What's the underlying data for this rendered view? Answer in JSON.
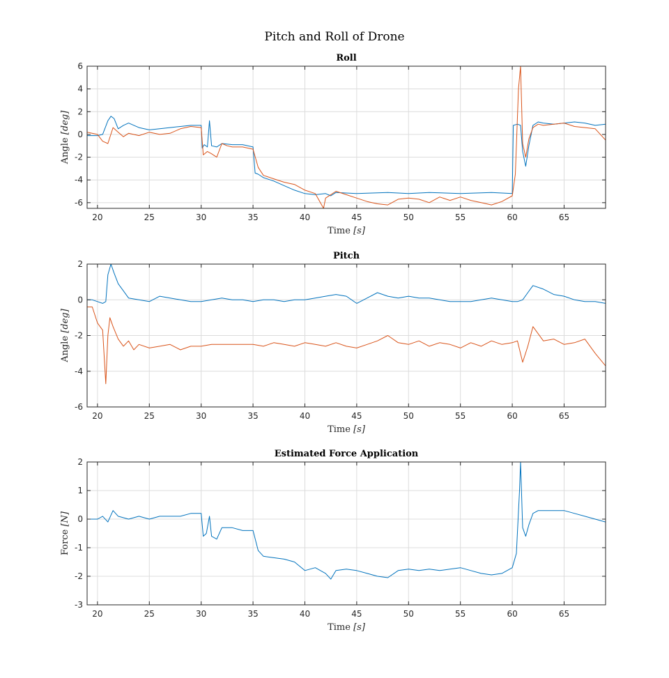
{
  "figure_title": "Pitch and Roll of Drone",
  "chart_data": [
    {
      "type": "line",
      "title": "Roll",
      "xlabel": "Time ",
      "xunit": "[s]",
      "ylabel": "Angle ",
      "yunit": "[deg]",
      "xlim": [
        19,
        69
      ],
      "ylim": [
        -6.5,
        6
      ],
      "xticks": [
        20,
        25,
        30,
        35,
        40,
        45,
        50,
        55,
        60,
        65
      ],
      "yticks": [
        -6,
        -4,
        -2,
        0,
        2,
        4,
        6
      ],
      "grid": true,
      "colors": [
        "#0072BD",
        "#D95319"
      ],
      "series": [
        {
          "x": [
            19,
            20,
            20.5,
            21,
            21.3,
            21.6,
            22,
            22.5,
            23,
            24,
            25,
            26,
            27,
            28,
            29,
            30,
            30.1,
            30.3,
            30.6,
            30.8,
            31,
            31.5,
            32,
            33,
            34,
            35,
            35.2,
            35.5,
            36,
            37,
            38,
            39,
            40,
            41,
            42,
            42.5,
            43,
            45,
            48,
            50,
            52,
            55,
            58,
            60,
            60.1,
            60.5,
            60.8,
            61,
            61.3,
            61.6,
            62,
            62.5,
            63,
            64,
            65,
            66,
            67,
            68,
            69
          ],
          "y": [
            -0.1,
            -0.1,
            0.0,
            1.2,
            1.6,
            1.4,
            0.5,
            0.8,
            1.0,
            0.6,
            0.4,
            0.5,
            0.6,
            0.7,
            0.8,
            0.8,
            -1.2,
            -0.9,
            -1.1,
            1.2,
            -1.0,
            -1.1,
            -0.8,
            -0.9,
            -0.9,
            -1.1,
            -3.4,
            -3.5,
            -3.8,
            -4.1,
            -4.5,
            -4.9,
            -5.2,
            -5.3,
            -5.2,
            -5.4,
            -5.1,
            -5.2,
            -5.1,
            -5.2,
            -5.1,
            -5.2,
            -5.1,
            -5.2,
            0.8,
            0.9,
            0.8,
            -1.5,
            -2.8,
            -1.0,
            0.8,
            1.1,
            1.0,
            0.9,
            1.0,
            1.1,
            1.0,
            0.8,
            0.9
          ]
        },
        {
          "x": [
            19,
            20,
            20.5,
            21,
            21.5,
            22,
            22.5,
            23,
            24,
            25,
            26,
            27,
            28,
            29,
            30,
            30.2,
            30.6,
            31,
            31.5,
            32,
            32.5,
            33,
            34,
            35,
            35.5,
            36,
            37,
            38,
            39,
            40,
            41,
            41.8,
            42,
            42.5,
            43,
            44,
            45,
            46,
            47,
            48,
            49,
            50,
            51,
            52,
            53,
            54,
            55,
            56,
            57,
            58,
            59,
            60,
            60.3,
            60.6,
            60.8,
            61,
            61.3,
            61.6,
            62,
            62.5,
            63,
            64,
            65,
            66,
            67,
            68,
            69
          ],
          "y": [
            0.2,
            0.0,
            -0.6,
            -0.8,
            0.6,
            0.2,
            -0.2,
            0.1,
            -0.1,
            0.2,
            0.0,
            0.1,
            0.5,
            0.7,
            0.6,
            -1.8,
            -1.5,
            -1.7,
            -2.0,
            -0.8,
            -1.0,
            -1.1,
            -1.1,
            -1.3,
            -2.9,
            -3.6,
            -3.9,
            -4.2,
            -4.4,
            -4.9,
            -5.2,
            -6.5,
            -5.6,
            -5.3,
            -5.0,
            -5.3,
            -5.6,
            -5.9,
            -6.1,
            -6.2,
            -5.7,
            -5.6,
            -5.7,
            -6.0,
            -5.5,
            -5.8,
            -5.5,
            -5.8,
            -6.0,
            -6.2,
            -5.9,
            -5.4,
            -3.5,
            4.0,
            6.0,
            -0.8,
            -2.0,
            -0.4,
            0.6,
            0.9,
            0.8,
            0.9,
            1.0,
            0.7,
            0.6,
            0.5,
            -0.5
          ]
        }
      ]
    },
    {
      "type": "line",
      "title": "Pitch",
      "xlabel": "Time ",
      "xunit": "[s]",
      "ylabel": "Angle ",
      "yunit": "[deg]",
      "xlim": [
        19,
        69
      ],
      "ylim": [
        -6,
        2
      ],
      "xticks": [
        20,
        25,
        30,
        35,
        40,
        45,
        50,
        55,
        60,
        65
      ],
      "yticks": [
        -6,
        -4,
        -2,
        0,
        2
      ],
      "grid": true,
      "colors": [
        "#0072BD",
        "#D95319"
      ],
      "series": [
        {
          "x": [
            19,
            19.5,
            20,
            20.5,
            20.8,
            21,
            21.3,
            21.6,
            22,
            22.5,
            23,
            24,
            25,
            26,
            27,
            28,
            29,
            30,
            31,
            32,
            33,
            34,
            35,
            36,
            37,
            38,
            39,
            40,
            41,
            42,
            43,
            44,
            45,
            46,
            47,
            48,
            49,
            50,
            51,
            52,
            53,
            54,
            55,
            56,
            57,
            58,
            59,
            60,
            60.5,
            61,
            61.5,
            62,
            63,
            64,
            65,
            66,
            67,
            68,
            69
          ],
          "y": [
            0.0,
            0.0,
            -0.1,
            -0.2,
            -0.1,
            1.4,
            2.0,
            1.5,
            0.9,
            0.5,
            0.1,
            0.0,
            -0.1,
            0.2,
            0.1,
            0.0,
            -0.1,
            -0.1,
            0.0,
            0.1,
            0.0,
            0.0,
            -0.1,
            0.0,
            0.0,
            -0.1,
            0.0,
            0.0,
            0.1,
            0.2,
            0.3,
            0.2,
            -0.2,
            0.1,
            0.4,
            0.2,
            0.1,
            0.2,
            0.1,
            0.1,
            0.0,
            -0.1,
            -0.1,
            -0.1,
            0.0,
            0.1,
            0.0,
            -0.1,
            -0.1,
            0.0,
            0.4,
            0.8,
            0.6,
            0.3,
            0.2,
            0.0,
            -0.1,
            -0.1,
            -0.2
          ]
        },
        {
          "x": [
            19,
            19.5,
            20,
            20.5,
            20.8,
            21,
            21.2,
            21.5,
            22,
            22.5,
            23,
            23.5,
            24,
            25,
            26,
            27,
            28,
            29,
            30,
            31,
            32,
            33,
            34,
            35,
            36,
            37,
            38,
            39,
            40,
            41,
            42,
            43,
            44,
            45,
            46,
            47,
            48,
            49,
            50,
            51,
            52,
            53,
            54,
            55,
            56,
            57,
            58,
            59,
            60,
            60.5,
            61,
            61.5,
            62,
            63,
            64,
            65,
            66,
            67,
            68,
            69
          ],
          "y": [
            -0.4,
            -0.4,
            -1.3,
            -1.7,
            -4.7,
            -2.0,
            -1.0,
            -1.5,
            -2.2,
            -2.6,
            -2.3,
            -2.8,
            -2.5,
            -2.7,
            -2.6,
            -2.5,
            -2.8,
            -2.6,
            -2.6,
            -2.5,
            -2.5,
            -2.5,
            -2.5,
            -2.5,
            -2.6,
            -2.4,
            -2.5,
            -2.6,
            -2.4,
            -2.5,
            -2.6,
            -2.4,
            -2.6,
            -2.7,
            -2.5,
            -2.3,
            -2.0,
            -2.4,
            -2.5,
            -2.3,
            -2.6,
            -2.4,
            -2.5,
            -2.7,
            -2.4,
            -2.6,
            -2.3,
            -2.5,
            -2.4,
            -2.3,
            -3.5,
            -2.6,
            -1.5,
            -2.3,
            -2.2,
            -2.5,
            -2.4,
            -2.2,
            -3.0,
            -3.7
          ]
        }
      ]
    },
    {
      "type": "line",
      "title": "Estimated Force Application",
      "xlabel": "Time ",
      "xunit": "[s]",
      "ylabel": "Force ",
      "yunit": "[N]",
      "xlim": [
        19,
        69
      ],
      "ylim": [
        -3,
        2
      ],
      "xticks": [
        20,
        25,
        30,
        35,
        40,
        45,
        50,
        55,
        60,
        65
      ],
      "yticks": [
        -3,
        -2,
        -1,
        0,
        1,
        2
      ],
      "grid": true,
      "colors": [
        "#0072BD"
      ],
      "series": [
        {
          "x": [
            19,
            20,
            20.5,
            21,
            21.5,
            22,
            23,
            24,
            25,
            26,
            27,
            28,
            29,
            30,
            30.2,
            30.5,
            30.8,
            31,
            31.5,
            32,
            33,
            34,
            35,
            35.5,
            36,
            37,
            38,
            39,
            40,
            41,
            42,
            42.5,
            43,
            44,
            45,
            46,
            47,
            48,
            49,
            50,
            51,
            52,
            53,
            54,
            55,
            56,
            57,
            58,
            59,
            60,
            60.4,
            60.7,
            60.8,
            61,
            61.3,
            61.6,
            62,
            62.5,
            63,
            64,
            65,
            66,
            67,
            68,
            69
          ],
          "y": [
            0.0,
            0.0,
            0.1,
            -0.1,
            0.3,
            0.1,
            0.0,
            0.1,
            0.0,
            0.1,
            0.1,
            0.1,
            0.2,
            0.2,
            -0.6,
            -0.5,
            0.1,
            -0.6,
            -0.7,
            -0.3,
            -0.3,
            -0.4,
            -0.4,
            -1.1,
            -1.3,
            -1.35,
            -1.4,
            -1.5,
            -1.8,
            -1.7,
            -1.9,
            -2.1,
            -1.8,
            -1.75,
            -1.8,
            -1.9,
            -2.0,
            -2.05,
            -1.8,
            -1.75,
            -1.8,
            -1.75,
            -1.8,
            -1.75,
            -1.7,
            -1.8,
            -1.9,
            -1.95,
            -1.9,
            -1.7,
            -1.2,
            1.0,
            2.0,
            -0.3,
            -0.6,
            -0.2,
            0.2,
            0.3,
            0.3,
            0.3,
            0.3,
            0.2,
            0.1,
            0.0,
            -0.1
          ]
        }
      ]
    }
  ]
}
